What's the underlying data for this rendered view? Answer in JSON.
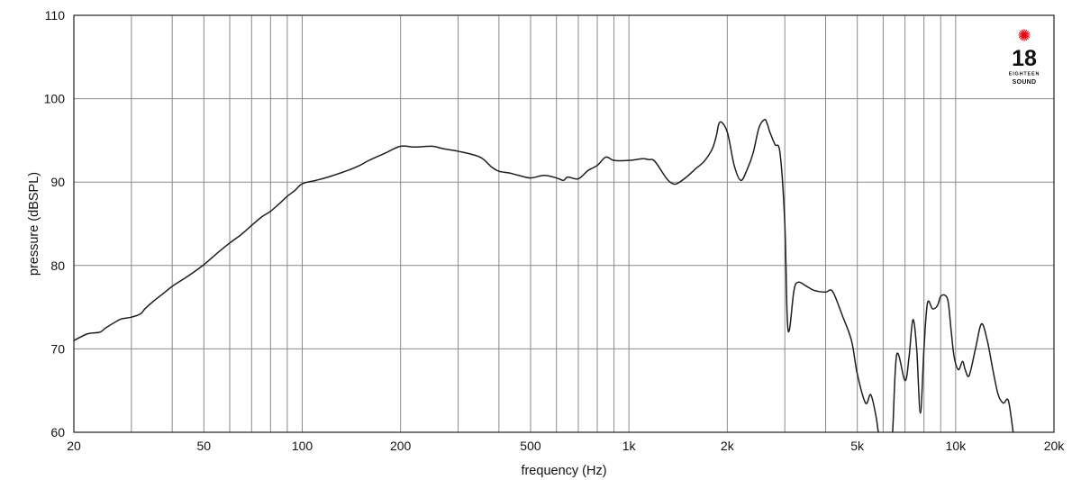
{
  "chart_data": {
    "type": "line",
    "title": "",
    "xlabel": "frequency (Hz)",
    "ylabel": "pressure (dBSPL)",
    "x_scale": "log",
    "xlim": [
      20,
      20000
    ],
    "ylim": [
      60,
      110
    ],
    "grid": true,
    "x_ticks": [
      20,
      50,
      100,
      200,
      500,
      1000,
      2000,
      5000,
      10000,
      20000
    ],
    "x_tick_labels": [
      "20",
      "50",
      "100",
      "200",
      "500",
      "1k",
      "2k",
      "5k",
      "10k",
      "20k"
    ],
    "y_ticks": [
      60,
      70,
      80,
      90,
      100,
      110
    ],
    "y_tick_labels": [
      "60",
      "70",
      "80",
      "90",
      "100",
      "110"
    ],
    "series": [
      {
        "x": [
          20,
          22,
          24,
          25,
          27,
          28,
          30,
          32,
          33,
          35,
          38,
          40,
          45,
          50,
          55,
          60,
          65,
          70,
          75,
          80,
          85,
          90,
          95,
          100,
          110,
          120,
          140,
          150,
          160,
          180,
          200,
          220,
          250,
          270,
          300,
          350,
          380,
          400,
          430,
          460,
          500,
          550,
          600,
          630,
          650,
          700,
          750,
          800,
          850,
          900,
          1000,
          1100,
          1150,
          1200,
          1300,
          1350,
          1400,
          1500,
          1600,
          1700,
          1800,
          1850,
          1900,
          2000,
          2100,
          2200,
          2300,
          2400,
          2500,
          2600,
          2650,
          2700,
          2800,
          2900,
          3000,
          3050,
          3100,
          3200,
          3300,
          3500,
          3700,
          4000,
          4200,
          4500,
          4800,
          5000,
          5300,
          5500,
          5700,
          5800,
          5900,
          6000,
          6200,
          6400,
          6600,
          7000,
          7200,
          7400,
          7600,
          7800,
          8000,
          8200,
          8500,
          8800,
          9000,
          9300,
          9500,
          9700,
          9900,
          10200,
          10500,
          10700,
          11000,
          11500,
          12000,
          12500,
          13000,
          13500,
          14000,
          14500,
          15000
        ],
        "y": [
          71.0,
          71.8,
          72.0,
          72.5,
          73.3,
          73.6,
          73.8,
          74.2,
          74.8,
          75.7,
          76.8,
          77.5,
          78.8,
          80.1,
          81.5,
          82.7,
          83.7,
          84.8,
          85.8,
          86.5,
          87.4,
          88.3,
          89.0,
          89.8,
          90.2,
          90.6,
          91.5,
          92.0,
          92.6,
          93.5,
          94.3,
          94.2,
          94.3,
          94.0,
          93.7,
          93.0,
          91.8,
          91.3,
          91.1,
          90.8,
          90.5,
          90.8,
          90.5,
          90.2,
          90.6,
          90.4,
          91.4,
          92.0,
          93.0,
          92.6,
          92.6,
          92.8,
          92.7,
          92.5,
          90.5,
          89.9,
          89.8,
          90.6,
          91.6,
          92.5,
          94.0,
          95.5,
          97.2,
          96.0,
          92.0,
          90.2,
          91.5,
          93.5,
          96.5,
          97.5,
          97.0,
          96.0,
          94.5,
          93.5,
          85.0,
          74.0,
          72.3,
          77.0,
          78.0,
          77.5,
          77.0,
          76.8,
          76.9,
          74.0,
          71.0,
          67.0,
          63.5,
          64.5,
          62.0,
          60.0,
          58.5,
          57.5,
          57.0,
          59.5,
          69.3,
          66.2,
          69.0,
          73.5,
          70.0,
          62.3,
          70.0,
          75.5,
          74.8,
          75.2,
          76.3,
          76.4,
          75.5,
          72.0,
          69.0,
          67.5,
          68.5,
          67.5,
          66.8,
          70.0,
          73.0,
          71.0,
          67.5,
          64.5,
          63.5,
          63.8,
          60.0
        ]
      }
    ]
  },
  "brand": {
    "logo_number": "18",
    "logo_word_small": "EIGHTEEN",
    "logo_word": "SOUND",
    "logo_star_color": "#e30613"
  }
}
